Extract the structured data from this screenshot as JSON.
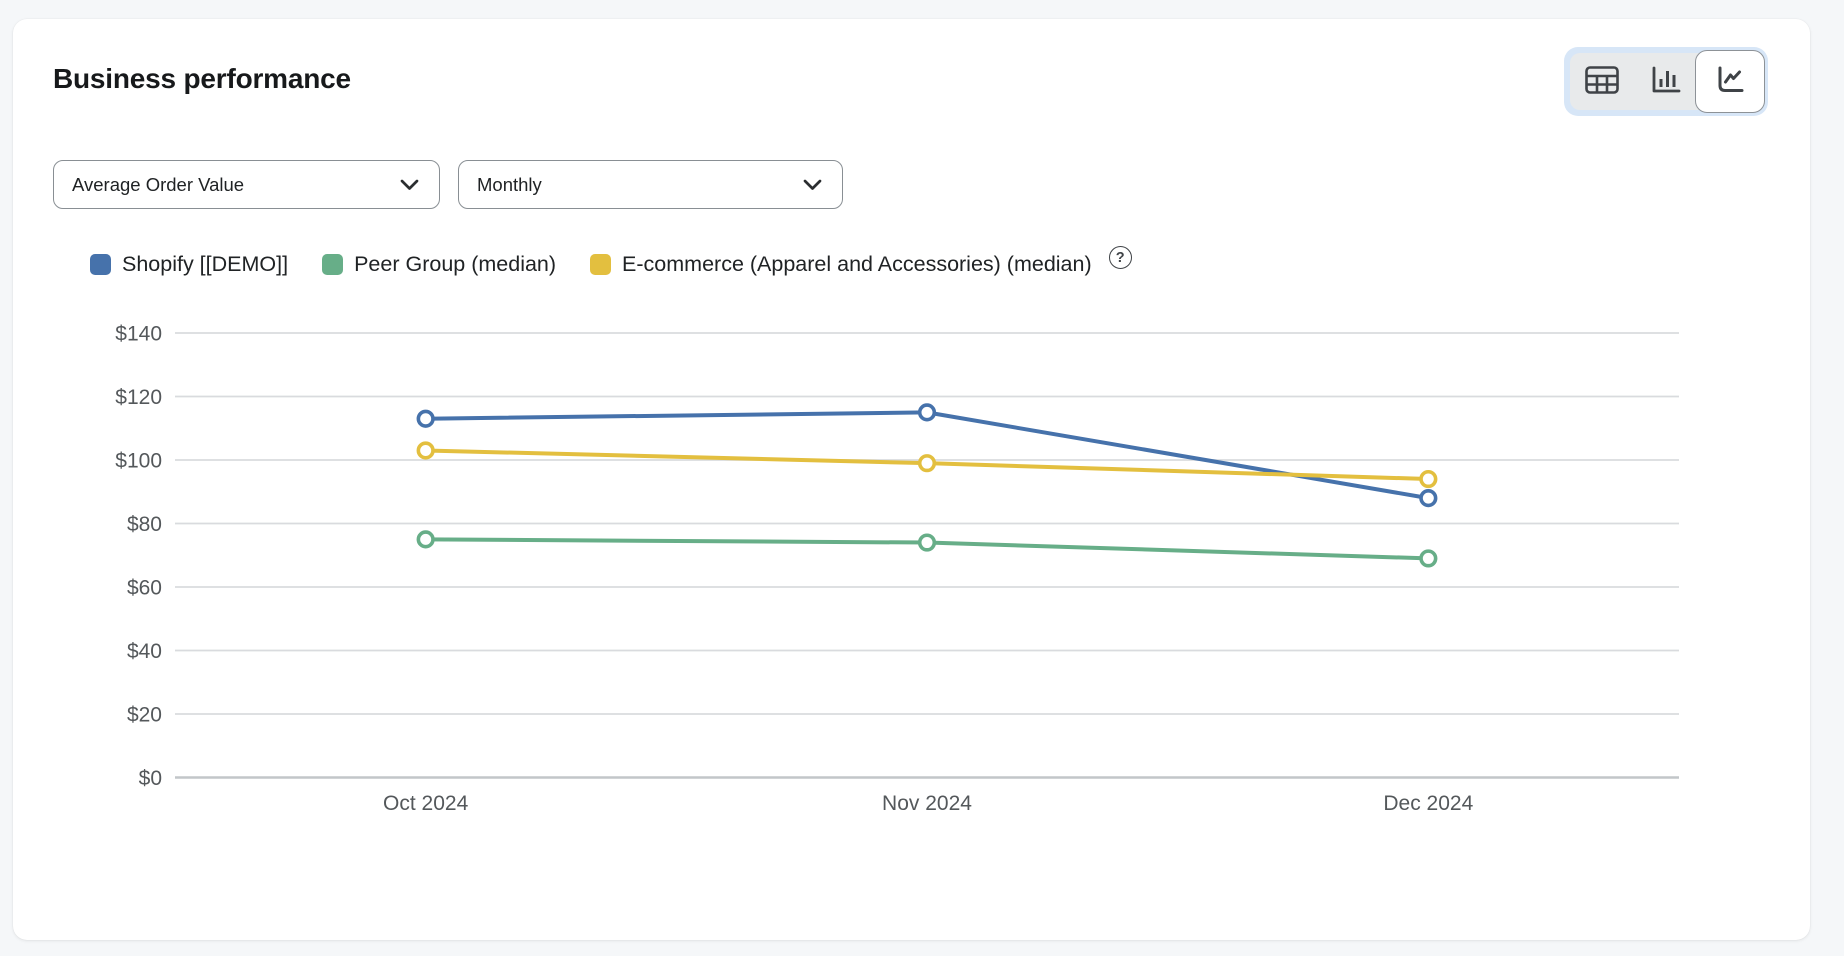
{
  "header": {
    "title": "Business performance"
  },
  "view_toggle": {
    "options": [
      {
        "name": "table",
        "selected": false
      },
      {
        "name": "bar-chart",
        "selected": false
      },
      {
        "name": "line-chart",
        "selected": true
      }
    ]
  },
  "filters": {
    "metric": {
      "value": "Average Order Value"
    },
    "granularity": {
      "value": "Monthly"
    }
  },
  "legend": {
    "help_icon": "?"
  },
  "chart_data": {
    "type": "line",
    "title": "Business performance",
    "categories": [
      "Oct 2024",
      "Nov 2024",
      "Dec 2024"
    ],
    "series": [
      {
        "name": "Shopify [[DEMO]]",
        "color": "#4672ab",
        "values": [
          113,
          115,
          88
        ]
      },
      {
        "name": "Peer Group (median)",
        "color": "#67ae88",
        "values": [
          75,
          74,
          69
        ]
      },
      {
        "name": "E-commerce (Apparel and Accessories) (median)",
        "color": "#e3bf3f",
        "values": [
          103,
          99,
          94
        ]
      }
    ],
    "xlabel": "",
    "ylabel": "",
    "ylim": [
      0,
      140
    ],
    "y_step": 20,
    "currency_prefix": "$",
    "y_tick_labels": [
      "$0",
      "$20",
      "$40",
      "$60",
      "$80",
      "$100",
      "$120",
      "$140"
    ],
    "grid": true,
    "legend_position": "top",
    "marker": "open-circle"
  },
  "colors": {
    "series_blue": "#4672ab",
    "series_green": "#67ae88",
    "series_yellow": "#e3bf3f",
    "grid_line": "#d9dbde",
    "axis_baseline": "#c2c6c9",
    "axis_text": "#54585b",
    "toggle_focus_ring": "#d7e6f7",
    "toggle_group_bg": "#e8eaeb"
  }
}
